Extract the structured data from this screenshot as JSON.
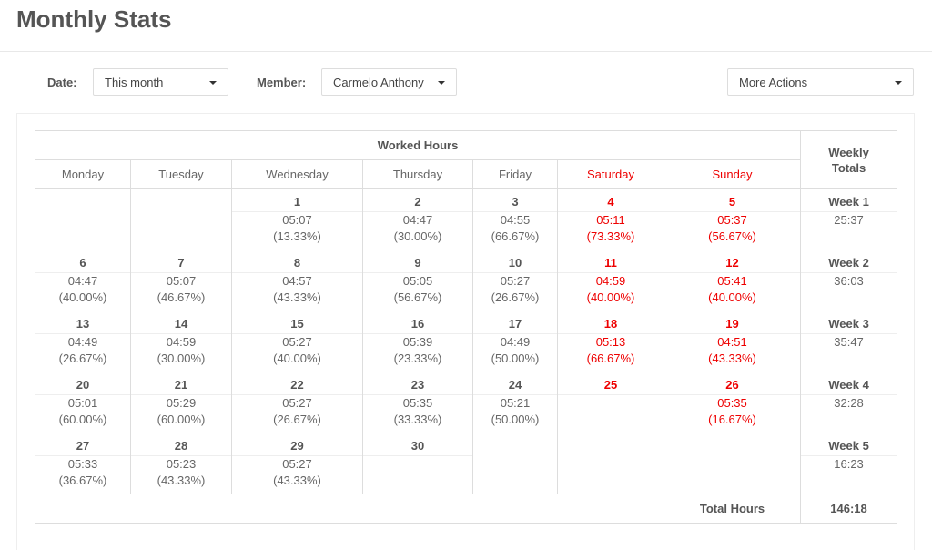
{
  "header": {
    "title": "Monthly Stats"
  },
  "filters": {
    "date_label": "Date:",
    "date_value": "This month",
    "member_label": "Member:",
    "member_value": "Carmelo Anthony",
    "actions": "More Actions"
  },
  "table": {
    "group_header": "Worked Hours",
    "weekly_header": "Weekly Totals",
    "days": [
      "Monday",
      "Tuesday",
      "Wednesday",
      "Thursday",
      "Friday",
      "Saturday",
      "Sunday"
    ],
    "weeks": [
      {
        "cells": [
          null,
          null,
          {
            "day": 1,
            "time": "05:07",
            "pct": "(13.33%)"
          },
          {
            "day": 2,
            "time": "04:47",
            "pct": "(30.00%)"
          },
          {
            "day": 3,
            "time": "04:55",
            "pct": "(66.67%)"
          },
          {
            "day": 4,
            "time": "05:11",
            "pct": "(73.33%)"
          },
          {
            "day": 5,
            "time": "05:37",
            "pct": "(56.67%)"
          }
        ],
        "label": "Week 1",
        "total": "25:37"
      },
      {
        "cells": [
          {
            "day": 6,
            "time": "04:47",
            "pct": "(40.00%)"
          },
          {
            "day": 7,
            "time": "05:07",
            "pct": "(46.67%)"
          },
          {
            "day": 8,
            "time": "04:57",
            "pct": "(43.33%)"
          },
          {
            "day": 9,
            "time": "05:05",
            "pct": "(56.67%)"
          },
          {
            "day": 10,
            "time": "05:27",
            "pct": "(26.67%)"
          },
          {
            "day": 11,
            "time": "04:59",
            "pct": "(40.00%)"
          },
          {
            "day": 12,
            "time": "05:41",
            "pct": "(40.00%)"
          }
        ],
        "label": "Week 2",
        "total": "36:03"
      },
      {
        "cells": [
          {
            "day": 13,
            "time": "04:49",
            "pct": "(26.67%)"
          },
          {
            "day": 14,
            "time": "04:59",
            "pct": "(30.00%)"
          },
          {
            "day": 15,
            "time": "05:27",
            "pct": "(40.00%)"
          },
          {
            "day": 16,
            "time": "05:39",
            "pct": "(23.33%)"
          },
          {
            "day": 17,
            "time": "04:49",
            "pct": "(50.00%)"
          },
          {
            "day": 18,
            "time": "05:13",
            "pct": "(66.67%)"
          },
          {
            "day": 19,
            "time": "04:51",
            "pct": "(43.33%)"
          }
        ],
        "label": "Week 3",
        "total": "35:47"
      },
      {
        "cells": [
          {
            "day": 20,
            "time": "05:01",
            "pct": "(60.00%)"
          },
          {
            "day": 21,
            "time": "05:29",
            "pct": "(60.00%)"
          },
          {
            "day": 22,
            "time": "05:27",
            "pct": "(26.67%)"
          },
          {
            "day": 23,
            "time": "05:35",
            "pct": "(33.33%)"
          },
          {
            "day": 24,
            "time": "05:21",
            "pct": "(50.00%)"
          },
          {
            "day": 25
          },
          {
            "day": 26,
            "time": "05:35",
            "pct": "(16.67%)"
          }
        ],
        "label": "Week 4",
        "total": "32:28"
      },
      {
        "cells": [
          {
            "day": 27,
            "time": "05:33",
            "pct": "(36.67%)"
          },
          {
            "day": 28,
            "time": "05:23",
            "pct": "(43.33%)"
          },
          {
            "day": 29,
            "time": "05:27",
            "pct": "(43.33%)"
          },
          {
            "day": 30
          },
          null,
          null,
          null
        ],
        "label": "Week 5",
        "total": "16:23"
      }
    ],
    "total_label": "Total Hours",
    "total": "146:18"
  }
}
